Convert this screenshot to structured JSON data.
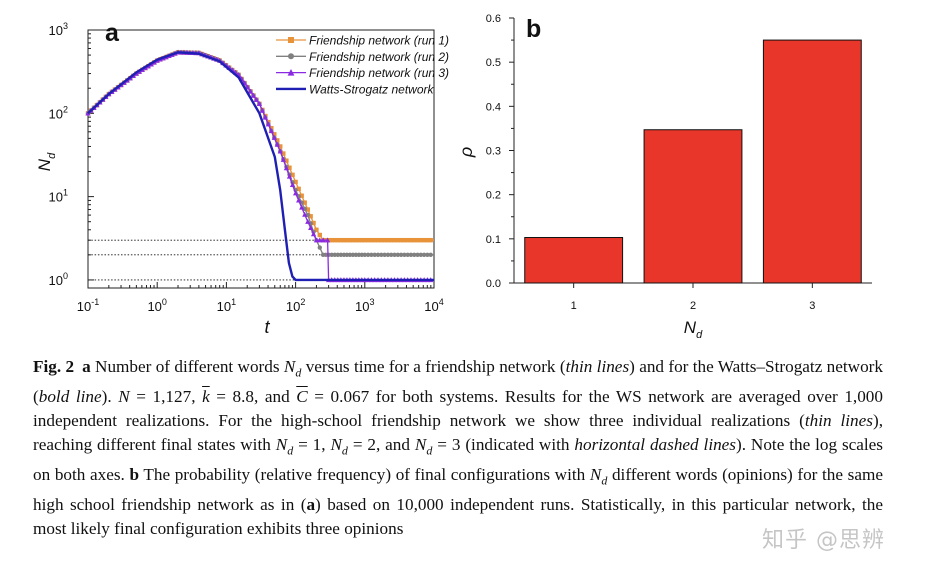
{
  "figure": {
    "panel_a_label": "a",
    "panel_b_label": "b"
  },
  "chart_data": [
    {
      "type": "line",
      "panel": "a",
      "xlabel": "t",
      "ylabel": "N_d",
      "x_scale": "log",
      "y_scale": "log",
      "xlim": [
        0.1,
        10000
      ],
      "ylim": [
        0.8,
        1000
      ],
      "x_ticks": [
        {
          "base": "10",
          "exp": "-1"
        },
        {
          "base": "10",
          "exp": "0"
        },
        {
          "base": "10",
          "exp": "1"
        },
        {
          "base": "10",
          "exp": "2"
        },
        {
          "base": "10",
          "exp": "3"
        },
        {
          "base": "10",
          "exp": "4"
        }
      ],
      "y_ticks": [
        {
          "base": "10",
          "exp": "0"
        },
        {
          "base": "10",
          "exp": "1"
        },
        {
          "base": "10",
          "exp": "2"
        },
        {
          "base": "10",
          "exp": "3"
        }
      ],
      "legend_position": "top-right",
      "horizontal_dashed_lines": [
        1,
        2,
        3
      ],
      "series": [
        {
          "name": "Friendship network (run 1)",
          "color": "#e8923a",
          "marker": "square",
          "x": [
            0.1,
            0.2,
            0.5,
            1,
            2,
            4,
            8,
            15,
            30,
            60,
            100,
            150,
            200,
            250,
            300,
            500,
            1000,
            3000,
            10000
          ],
          "y": [
            100,
            170,
            300,
            430,
            540,
            530,
            430,
            290,
            130,
            40,
            15,
            7,
            4,
            3,
            3,
            3,
            3,
            3,
            3
          ]
        },
        {
          "name": "Friendship network (run 2)",
          "color": "#808080",
          "marker": "circle",
          "x": [
            0.1,
            0.2,
            0.5,
            1,
            2,
            4,
            8,
            15,
            30,
            60,
            100,
            150,
            200,
            250,
            300,
            500,
            1000,
            3000,
            10000
          ],
          "y": [
            100,
            170,
            300,
            430,
            540,
            530,
            430,
            290,
            130,
            35,
            12,
            6,
            3,
            2,
            2,
            2,
            2,
            2,
            2
          ]
        },
        {
          "name": "Friendship network (run 3)",
          "color": "#8a2be2",
          "marker": "triangle",
          "x": [
            0.1,
            0.2,
            0.5,
            1,
            2,
            4,
            8,
            15,
            30,
            60,
            100,
            150,
            200,
            250,
            290,
            300,
            500,
            1000,
            3000,
            10000
          ],
          "y": [
            100,
            170,
            300,
            430,
            540,
            530,
            430,
            290,
            130,
            35,
            11,
            5,
            3,
            3,
            3,
            1,
            1,
            1,
            1,
            1
          ]
        },
        {
          "name": "Watts-Strogatz network",
          "color": "#1f1fb4",
          "marker": "none",
          "x": [
            0.1,
            0.2,
            0.5,
            1,
            2,
            4,
            8,
            15,
            30,
            50,
            60,
            70,
            80,
            90,
            100,
            120,
            10000
          ],
          "y": [
            100,
            170,
            310,
            440,
            540,
            520,
            420,
            270,
            100,
            30,
            12,
            4,
            1.6,
            1.1,
            1.0,
            1.0,
            1.0
          ]
        }
      ]
    },
    {
      "type": "bar",
      "panel": "b",
      "xlabel": "N_d",
      "ylabel": "ρ",
      "categories": [
        "1",
        "2",
        "3"
      ],
      "values": [
        0.103,
        0.347,
        0.55
      ],
      "ylim": [
        0,
        0.6
      ],
      "y_ticks": [
        "0.0",
        "0.1",
        "0.2",
        "0.3",
        "0.4",
        "0.5",
        "0.6"
      ],
      "bar_color": "#e8362a"
    }
  ],
  "caption": {
    "label": "Fig. 2",
    "parts": [
      {
        "b": "a"
      },
      {
        "t": " Number of different words "
      },
      {
        "i": "N"
      },
      {
        "sub": "d"
      },
      {
        "t": " versus time for a friendship network ("
      },
      {
        "i": "thin lines"
      },
      {
        "t": ") and for the Watts–Strogatz network ("
      },
      {
        "i": "bold line"
      },
      {
        "t": "). "
      },
      {
        "i": "N"
      },
      {
        "t": " = 1,127, "
      },
      {
        "bar": "k"
      },
      {
        "t": " = 8.8, and "
      },
      {
        "bar": "C"
      },
      {
        "t": " = 0.067 for both systems. Results for the WS network are averaged over 1,000 independent realizations. For the high-school friendship network we show three individual realizations ("
      },
      {
        "i": "thin lines"
      },
      {
        "t": "), reaching different final states with "
      },
      {
        "i": "N"
      },
      {
        "sub": "d"
      },
      {
        "t": " = 1, "
      },
      {
        "i": "N"
      },
      {
        "sub": "d"
      },
      {
        "t": " = 2, and "
      },
      {
        "i": "N"
      },
      {
        "sub": "d"
      },
      {
        "t": " = 3 (indicated with "
      },
      {
        "i": "horizontal dashed lines"
      },
      {
        "t": "). Note the log scales on both axes. "
      },
      {
        "b": "b"
      },
      {
        "t": " The probability (relative frequency) of final configurations with "
      },
      {
        "i": "N"
      },
      {
        "sub": "d"
      },
      {
        "t": " different words (opinions) for the same high school friendship network as in ("
      },
      {
        "b": "a"
      },
      {
        "t": ") based on 10,000 independent runs. Statistically, in this particular network, the most likely final configuration exhibits three opinions"
      }
    ]
  },
  "watermark": "知乎 @思辨"
}
